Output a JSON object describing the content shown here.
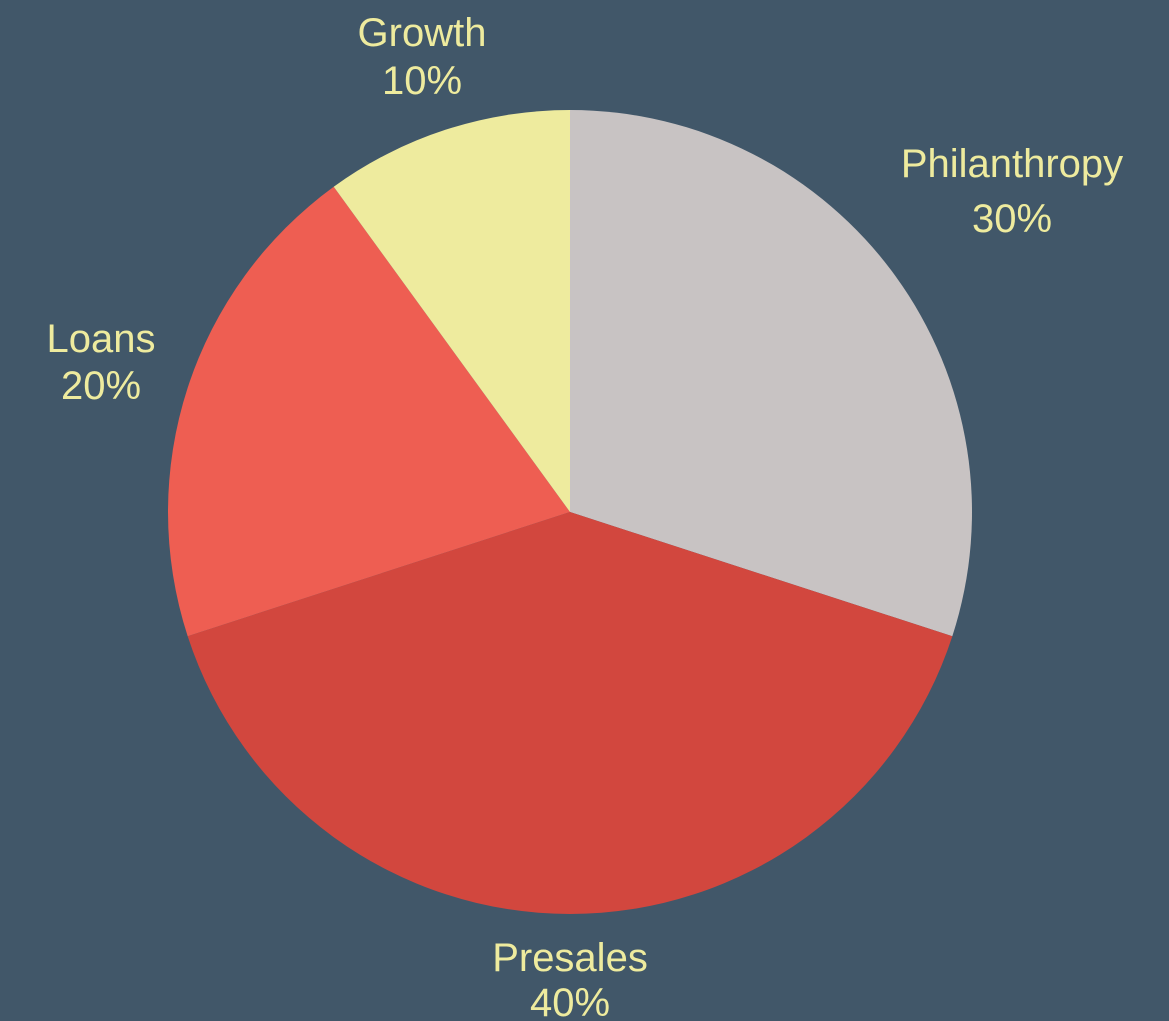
{
  "background_color": "#415769",
  "label_color": "#EEEB9E",
  "chart_data": {
    "type": "pie",
    "start": "top",
    "direction": "clockwise",
    "slices": [
      {
        "label": "Philanthropy",
        "value": 30,
        "value_label": "30%",
        "color": "#C8C3C3"
      },
      {
        "label": "Presales",
        "value": 40,
        "value_label": "40%",
        "color": "#D2473E"
      },
      {
        "label": "Loans",
        "value": 20,
        "value_label": "20%",
        "color": "#EE5E52"
      },
      {
        "label": "Growth",
        "value": 10,
        "value_label": "10%",
        "color": "#EEEB9E"
      }
    ]
  }
}
